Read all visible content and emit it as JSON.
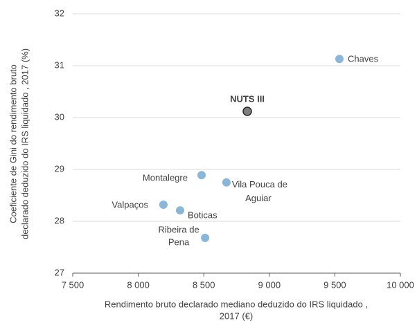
{
  "chart_data": {
    "type": "scatter",
    "x": [
      9535,
      8832,
      8483,
      8673,
      8192,
      8319,
      8510
    ],
    "values": [
      31.13,
      30.12,
      28.89,
      28.75,
      28.32,
      28.21,
      27.68
    ],
    "point_labels": [
      [
        "Chaves"
      ],
      [
        "NUTS III"
      ],
      [
        "Montalegre"
      ],
      [
        "Vila Pouca de",
        "Aguiar"
      ],
      [
        "Valpaços"
      ],
      [
        "Boticas"
      ],
      [
        "Ribeira de",
        "Pena"
      ]
    ],
    "colors": [
      "#8ab6d8",
      "#7f7f7f",
      "#8ab6d8",
      "#8ab6d8",
      "#8ab6d8",
      "#8ab6d8",
      "#8ab6d8"
    ],
    "xlabel": [
      "Rendimento bruto declarado mediano deduzido do IRS liquidado ,",
      "2017 (€)"
    ],
    "ylabel": [
      "Coeficiente de Gini do rendimento bruto",
      "declarado deduzido do IRS liquidado , 2017 (%)"
    ],
    "xlim": [
      7500,
      10000
    ],
    "xticks": [
      {
        "value": 7500,
        "label": "7 500"
      },
      {
        "value": 8000,
        "label": "8 000"
      },
      {
        "value": 8500,
        "label": "8 500"
      },
      {
        "value": 9000,
        "label": "9 000"
      },
      {
        "value": 9500,
        "label": "9 500"
      },
      {
        "value": 10000,
        "label": "10 000"
      }
    ],
    "ylim": [
      27,
      32
    ],
    "yticks": [
      27,
      28,
      29,
      30,
      31,
      32
    ],
    "grid": true
  }
}
